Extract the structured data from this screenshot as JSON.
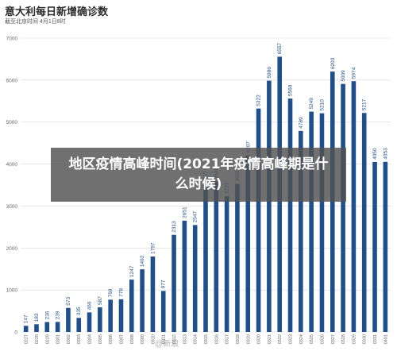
{
  "header": {
    "title": "意大利每日新增确诊数",
    "subtitle": "截至北京时间 4月1日8时"
  },
  "overlay": {
    "text": "地区疫情高峰时间(2021年疫情高峰期是什么时候)"
  },
  "watermark": "@新浪",
  "chart_data": {
    "type": "bar",
    "title": "意大利每日新增确诊数",
    "categories": [
      "0227",
      "0228",
      "0229",
      "0301",
      "0302",
      "0303",
      "0304",
      "0305",
      "0306",
      "0307",
      "0308",
      "0309",
      "0310",
      "0311",
      "0312",
      "0313",
      "0314",
      "0315",
      "0316",
      "0317",
      "0318",
      "0319",
      "0320",
      "0321",
      "0322",
      "0323",
      "0324",
      "0325",
      "0326",
      "0327",
      "0328",
      "0329",
      "0330",
      "0331",
      "0401"
    ],
    "values": [
      147,
      183,
      236,
      239,
      573,
      335,
      466,
      587,
      769,
      778,
      1247,
      1492,
      1797,
      977,
      2313,
      2651,
      2547,
      3497,
      3590,
      3233,
      3526,
      4207,
      5322,
      5986,
      6557,
      5560,
      4789,
      5249,
      5210,
      6203,
      5909,
      5974,
      5217,
      4050,
      4053
    ],
    "ylim": [
      0,
      7000
    ],
    "yticks": [
      0,
      1000,
      2000,
      3000,
      4000,
      5000,
      6000,
      7000
    ],
    "grid": true,
    "color": "#1f4e8c"
  }
}
